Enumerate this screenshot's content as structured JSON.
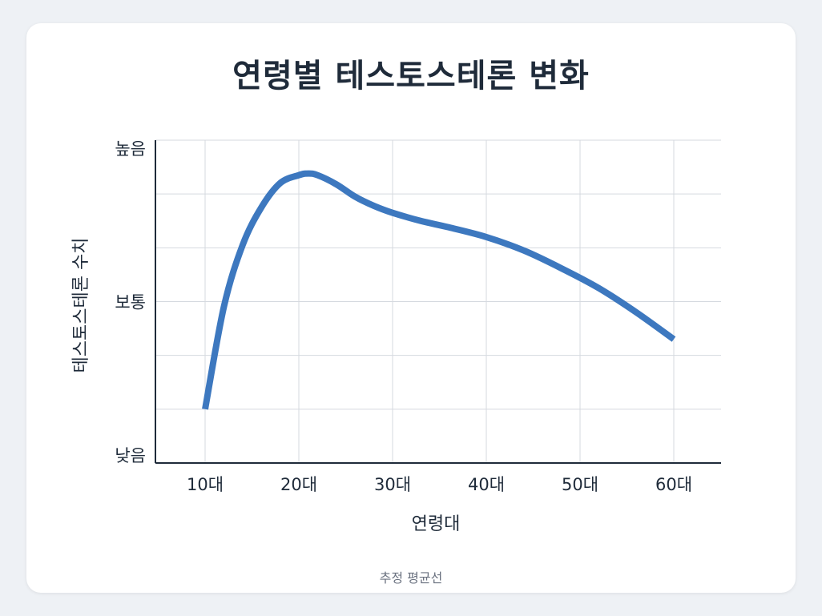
{
  "chart_data": {
    "type": "line",
    "title": "연령별 테스토스테론 변화",
    "xlabel": "연령대",
    "ylabel": "테스토스테론 수치",
    "categories": [
      "10대",
      "20대",
      "30대",
      "40대",
      "50대",
      "60대"
    ],
    "y_tick_labels": [
      "낮음",
      "보통",
      "높음"
    ],
    "ylim": [
      0,
      6
    ],
    "grid": true,
    "series": [
      {
        "x": [
          10,
          12,
          14,
          16,
          18,
          20,
          21,
          22,
          24,
          26,
          28,
          30,
          33,
          36,
          40,
          44,
          48,
          52,
          56,
          60
        ],
        "values": [
          1.0,
          2.9,
          4.05,
          4.75,
          5.2,
          5.35,
          5.38,
          5.35,
          5.18,
          4.95,
          4.78,
          4.65,
          4.5,
          4.38,
          4.2,
          3.95,
          3.62,
          3.25,
          2.8,
          2.3
        ],
        "color": "#3d78bf"
      }
    ],
    "annotation": "추정 평균선"
  }
}
